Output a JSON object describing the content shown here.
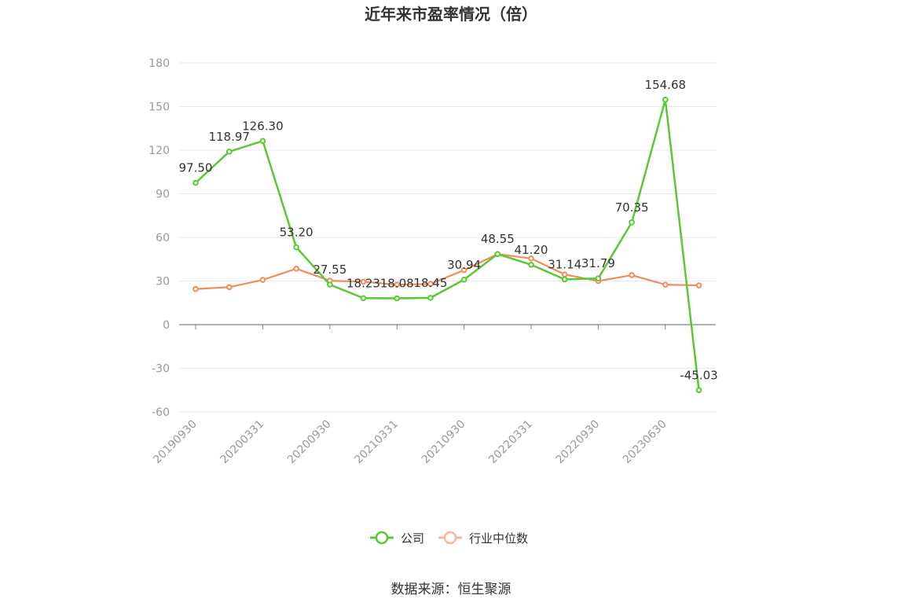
{
  "chart_data": {
    "type": "line",
    "title": "近年来市盈率情况（倍）",
    "xlabel": "",
    "ylabel": "",
    "ylim": [
      -60,
      180
    ],
    "yticks": [
      -60,
      -30,
      0,
      30,
      60,
      90,
      120,
      150,
      180
    ],
    "x_tick_labels": [
      "20190930",
      "20200331",
      "20200930",
      "20210331",
      "20210930",
      "20220331",
      "20220930",
      "20230630"
    ],
    "grid": true,
    "legend_position": "bottom",
    "series": [
      {
        "name": "公司",
        "color": "#5ac832",
        "values": [
          97.5,
          118.97,
          126.3,
          53.2,
          27.55,
          18.23,
          18.08,
          18.45,
          30.94,
          48.55,
          41.2,
          31.14,
          31.79,
          70.35,
          154.68,
          -45.03
        ],
        "labels": [
          "97.50",
          "118.97",
          "126.30",
          "53.20",
          "27.55",
          "18.23",
          "18.08",
          "18.45",
          "30.94",
          "48.55",
          "41.20",
          "31.14",
          "31.79",
          "70.35",
          "154.68",
          "-45.03"
        ]
      },
      {
        "name": "行业中位数",
        "color": "#f08c5a",
        "values": [
          24.5,
          25.8,
          30.8,
          38.5,
          30.2,
          29.5,
          27.5,
          28.0,
          37.5,
          48.5,
          45.5,
          34.5,
          30.0,
          34.0,
          27.5,
          27.0
        ]
      }
    ]
  },
  "legend": {
    "company": "公司",
    "industry": "行业中位数"
  },
  "source": "数据来源：恒生聚源"
}
